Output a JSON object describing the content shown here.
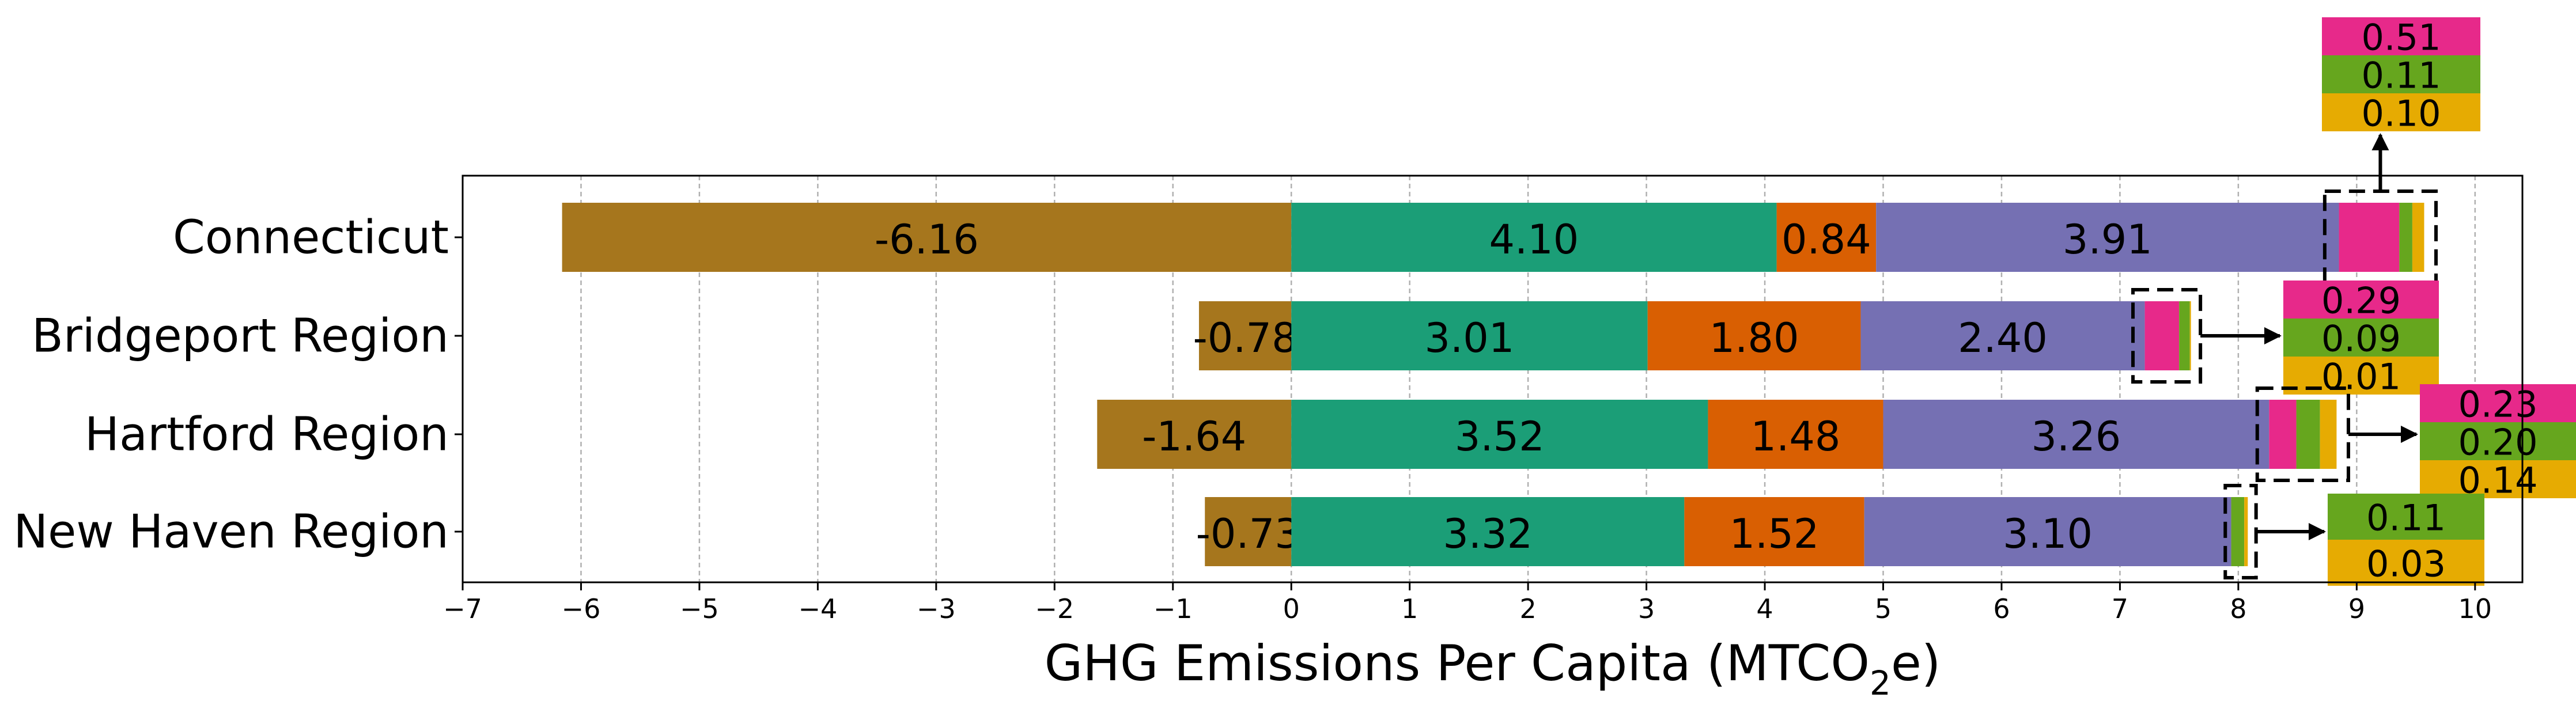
{
  "chart_data": {
    "type": "bar",
    "orientation": "horizontal",
    "stacked": true,
    "xlabel": "GHG Emissions Per Capita (MTCO",
    "xlabel_subscript": "2",
    "xlabel_suffix": "e)",
    "xlim": [
      -7,
      10.4
    ],
    "xticks": [
      -7,
      -6,
      -5,
      -4,
      -3,
      -2,
      -1,
      0,
      1,
      2,
      3,
      4,
      5,
      6,
      7,
      8,
      9,
      10
    ],
    "xtick_labels": [
      "−7",
      "−6",
      "−5",
      "−4",
      "−3",
      "−2",
      "−1",
      "0",
      "1",
      "2",
      "3",
      "4",
      "5",
      "6",
      "7",
      "8",
      "9",
      "10"
    ],
    "grid": "vertical dashed",
    "categories": [
      "Connecticut",
      "Bridgeport Region",
      "Hartford Region",
      "New Haven Region"
    ],
    "series": [
      {
        "color": "#a6761d",
        "values": [
          -6.16,
          -0.78,
          -1.64,
          -0.73
        ],
        "labels": [
          "-6.16",
          "-0.78",
          "-1.64",
          "-0.73"
        ]
      },
      {
        "color": "#1b9e77",
        "values": [
          4.1,
          3.01,
          3.52,
          3.32
        ],
        "labels": [
          "4.10",
          "3.01",
          "3.52",
          "3.32"
        ]
      },
      {
        "color": "#d95f02",
        "values": [
          0.84,
          1.8,
          1.48,
          1.52
        ],
        "labels": [
          "0.84",
          "1.80",
          "1.48",
          "1.52"
        ]
      },
      {
        "color": "#7570b3",
        "values": [
          3.91,
          2.4,
          3.26,
          3.1
        ],
        "labels": [
          "3.91",
          "2.40",
          "3.26",
          "3.10"
        ]
      },
      {
        "color": "#e7298a",
        "values": [
          0.51,
          0.29,
          0.23,
          0.0
        ],
        "labels": [
          "0.51",
          "0.29",
          "0.23",
          ""
        ]
      },
      {
        "color": "#66a61e",
        "values": [
          0.11,
          0.09,
          0.2,
          0.11
        ],
        "labels": [
          "0.11",
          "0.09",
          "0.20",
          "0.11"
        ]
      },
      {
        "color": "#e6ab02",
        "values": [
          0.1,
          0.01,
          0.14,
          0.03
        ],
        "labels": [
          "0.10",
          "0.01",
          "0.14",
          "0.03"
        ]
      }
    ]
  }
}
